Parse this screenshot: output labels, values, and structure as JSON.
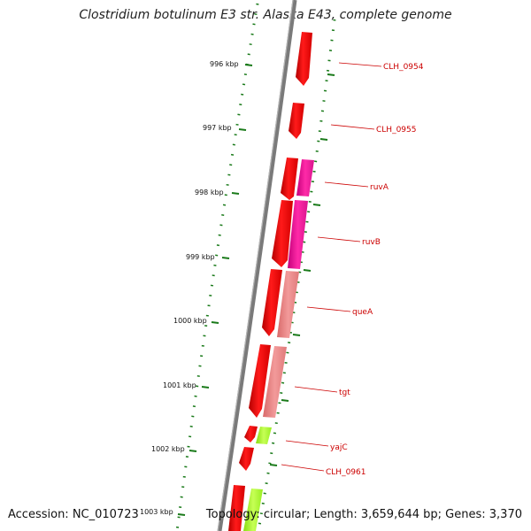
{
  "title": "Clostridium botulinum E3 str. Alaska E43, complete genome",
  "footer": {
    "accession": "Accession: NC_010723",
    "summary": "Topology: circular; Length: 3,659,644 bp; Genes: 3,370"
  },
  "colors": {
    "backbone": "#8a8a8a",
    "tick": "#1a7a1a",
    "gene_red": "#ee0000",
    "gene_magenta": "#ee1199",
    "gene_salmon": "#ee7f7f",
    "gene_lime": "#99ee22",
    "label": "#cc0000"
  },
  "scale_labels": [
    "996 kbp",
    "997 kbp",
    "998 kbp",
    "999 kbp",
    "1000 kbp",
    "1001 kbp",
    "1002 kbp",
    "1003 kbp"
  ],
  "gene_labels": [
    "CLH_0954",
    "CLH_0955",
    "ruvA",
    "ruvB",
    "queA",
    "tgt",
    "yajC",
    "CLH_0961"
  ]
}
